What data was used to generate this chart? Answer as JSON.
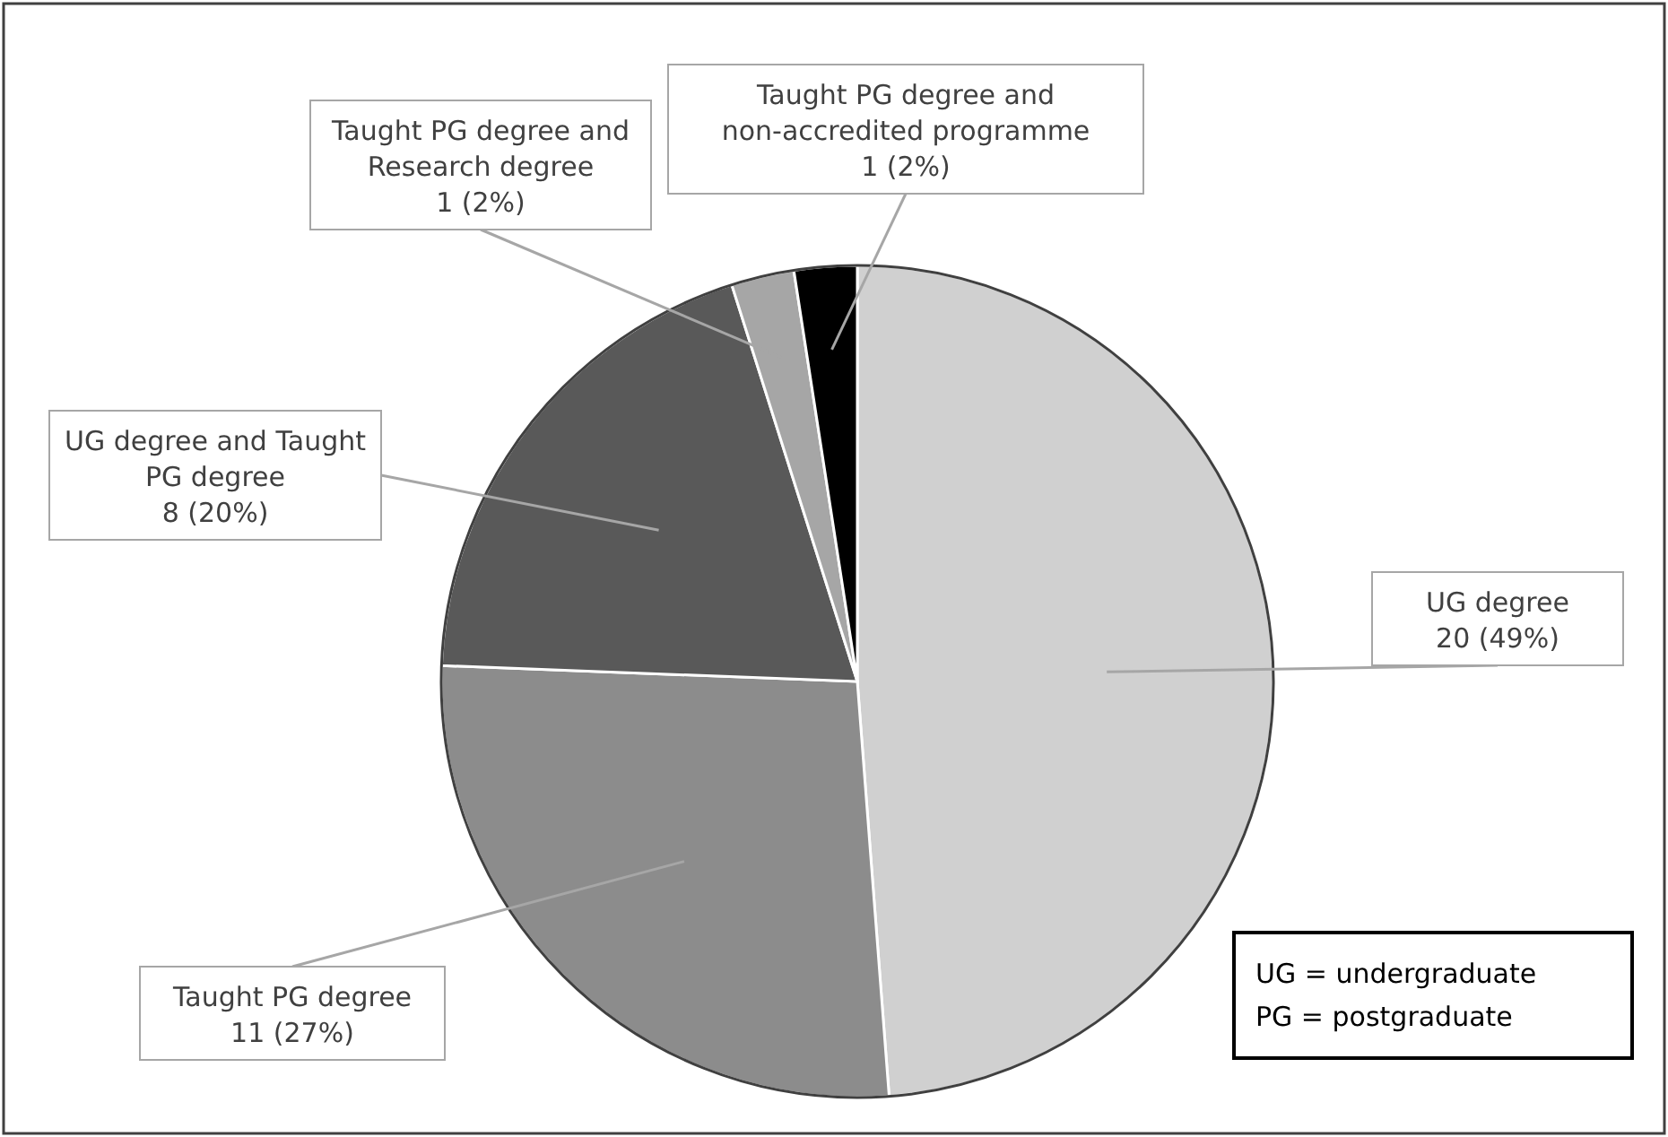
{
  "chart_data": {
    "type": "pie",
    "categories": [
      "UG degree",
      "Taught PG degree",
      "UG degree and Taught PG degree",
      "Taught PG degree and Research degree",
      "Taught PG degree and non-accredited programme"
    ],
    "values": [
      20,
      11,
      8,
      1,
      1
    ],
    "value_labels": [
      "20 (49%)",
      "11 (27%)",
      "8 (20%)",
      "1 (2%)",
      "1 (2%)"
    ],
    "colors": [
      "#d0d0d0",
      "#8c8c8c",
      "#595959",
      "#a6a6a6",
      "#000000"
    ],
    "annotations": [
      "UG = undergraduate",
      "PG = postgraduate"
    ]
  }
}
